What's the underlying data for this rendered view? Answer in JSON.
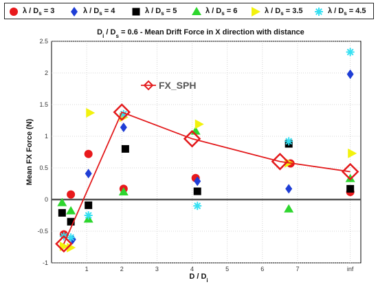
{
  "chart_data": {
    "type": "scatter",
    "title": "D_i / D_s = 0.6 - Mean Drift Force in X direction with distance",
    "title_parts": {
      "a": "D",
      "a_sub": "i",
      "b": " / D",
      "b_sub": "s",
      "c": " = 0.6 - Mean Drift Force in X direction with distance"
    },
    "xlabel": "D / D_i",
    "xlabel_parts": {
      "a": "D / D",
      "a_sub": "i"
    },
    "ylabel": "Mean FX Force (N)",
    "xlim": [
      0,
      8.8
    ],
    "ylim": [
      -1,
      2.5
    ],
    "xticks": [
      1,
      2,
      3,
      4,
      5,
      6,
      7
    ],
    "xtick_inf": {
      "value": 8.5,
      "label": "inf"
    },
    "yticks": [
      -1,
      -0.5,
      0,
      0.5,
      1,
      1.5,
      2,
      2.5
    ],
    "ytick_labels": [
      "-1",
      "-0.5",
      "0",
      "0.5",
      "1",
      "1.5",
      "2",
      "2.5"
    ],
    "grid": true,
    "legend_position": "top",
    "series": [
      {
        "name": "λ / D_s = 3",
        "label_main": "λ / D",
        "label_sub": "s",
        "label_val": " = 3",
        "marker": "circle",
        "color": "#e8191c",
        "x": [
          0.35,
          0.55,
          1.05,
          2.05,
          4.1,
          6.8,
          8.5
        ],
        "y": [
          -0.55,
          0.08,
          0.72,
          0.17,
          0.34,
          0.57,
          0.12
        ]
      },
      {
        "name": "λ / D_s = 4",
        "label_main": "λ / D",
        "label_sub": "s",
        "label_val": " = 4",
        "marker": "diamond",
        "color": "#1f3ed6",
        "x": [
          0.6,
          1.05,
          2.05,
          4.15,
          6.75,
          8.5
        ],
        "y": [
          -0.63,
          0.41,
          1.14,
          0.29,
          0.17,
          1.98
        ]
      },
      {
        "name": "λ / D_s = 5",
        "label_main": "λ / D",
        "label_sub": "s",
        "label_val": " = 5",
        "marker": "square",
        "color": "#000000",
        "x": [
          0.3,
          0.55,
          1.05,
          2.1,
          4.15,
          6.75,
          8.5
        ],
        "y": [
          -0.21,
          -0.35,
          -0.09,
          0.8,
          0.13,
          0.88,
          0.17
        ]
      },
      {
        "name": "λ / D_s = 6",
        "label_main": "λ / D",
        "label_sub": "s",
        "label_val": " = 6",
        "marker": "triangle-up",
        "color": "#2ed62e",
        "x": [
          0.3,
          0.55,
          1.05,
          2.05,
          4.1,
          6.75,
          8.5
        ],
        "y": [
          -0.05,
          -0.18,
          -0.31,
          0.12,
          1.08,
          -0.15,
          0.33
        ]
      },
      {
        "name": "λ / D_s = 3.5",
        "label_main": "λ / D",
        "label_sub": "s",
        "label_val": " = 3.5",
        "marker": "triangle-right",
        "color": "#f2f20d",
        "x": [
          0.35,
          0.55,
          1.1,
          2.05,
          4.2,
          6.75,
          8.55
        ],
        "y": [
          -0.74,
          -0.76,
          1.37,
          1.3,
          1.19,
          0.58,
          0.73
        ]
      },
      {
        "name": "λ / D_s = 4.5",
        "label_main": "λ / D",
        "label_sub": "s",
        "label_val": " = 4.5",
        "marker": "asterisk",
        "color": "#35e0f2",
        "x": [
          0.35,
          0.55,
          1.05,
          2.05,
          4.15,
          6.75,
          8.5
        ],
        "y": [
          -0.58,
          -0.6,
          -0.25,
          1.35,
          -0.1,
          0.92,
          2.33
        ]
      },
      {
        "name": "FX_SPH",
        "label_main": "FX_SPH",
        "marker": "diamond-open",
        "color": "#e31a1c",
        "line": true,
        "x": [
          0.35,
          2.0,
          4.0,
          6.5,
          8.5
        ],
        "y": [
          -0.7,
          1.38,
          0.96,
          0.6,
          0.44
        ]
      }
    ]
  }
}
